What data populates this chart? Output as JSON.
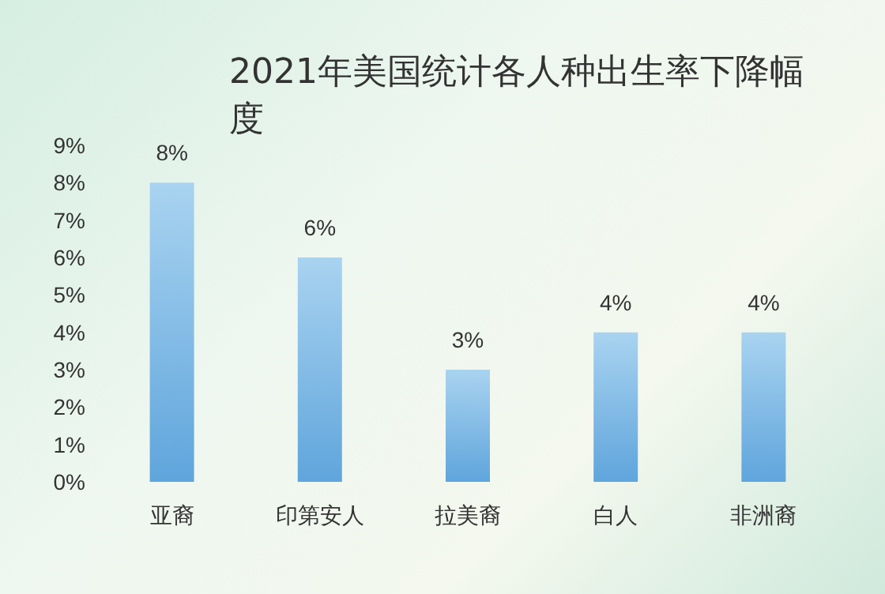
{
  "chart_data": {
    "type": "bar",
    "title": "2021年美国统计各人种出生率下降幅度",
    "categories": [
      "亚裔",
      "印第安人",
      "拉美裔",
      "白人",
      "非洲裔"
    ],
    "values": [
      8,
      6,
      3,
      4,
      4
    ],
    "value_labels": [
      "8%",
      "6%",
      "3%",
      "4%",
      "4%"
    ],
    "color": "#5fa5dc",
    "ylim": [
      0,
      9
    ],
    "yticks": [
      {
        "value": 0,
        "label": "0%"
      },
      {
        "value": 1,
        "label": "1%"
      },
      {
        "value": 2,
        "label": "2%"
      },
      {
        "value": 3,
        "label": "3%"
      },
      {
        "value": 4,
        "label": "4%"
      },
      {
        "value": 5,
        "label": "5%"
      },
      {
        "value": 6,
        "label": "6%"
      },
      {
        "value": 7,
        "label": "7%"
      },
      {
        "value": 8,
        "label": "8%"
      },
      {
        "value": 9,
        "label": "9%"
      }
    ],
    "grid": false
  }
}
